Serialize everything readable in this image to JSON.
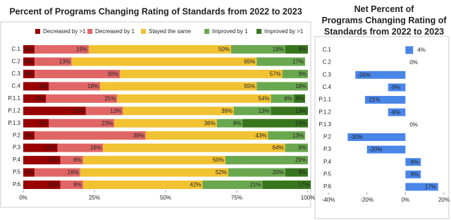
{
  "chart_data": [
    {
      "type": "stacked-bar-horizontal",
      "title": "Percent of Programs Changing Rating of Standards from 2022 to 2023",
      "categories": [
        "C.1",
        "C.2",
        "C.3",
        "C.4",
        "P.1.1",
        "P.1.2",
        "P.1.3",
        "P.2",
        "P.3",
        "P.4",
        "P.5",
        "P.6"
      ],
      "series": [
        {
          "name": "Decreased by >1",
          "color": "#990000",
          "values": [
            4,
            4,
            4,
            9,
            8,
            22,
            9,
            4,
            12,
            13,
            4,
            13
          ],
          "value_labels": [
            "4%",
            "4%",
            "4%",
            "9%",
            "8%",
            "22%",
            "9%",
            "4%",
            "12%",
            "13%",
            "4%",
            "13%"
          ]
        },
        {
          "name": "Decreased by 1",
          "color": "#e06666",
          "values": [
            19,
            13,
            30,
            18,
            25,
            13,
            23,
            39,
            16,
            8,
            16,
            8
          ],
          "value_labels": [
            "19%",
            "13%",
            "30%",
            "18%",
            "25%",
            "13%",
            "23%",
            "39%",
            "16%",
            "8%",
            "16%",
            "8%"
          ]
        },
        {
          "name": "Stayed the same",
          "color": "#f1c232",
          "values": [
            50,
            65,
            57,
            55,
            54,
            39,
            36,
            43,
            64,
            50,
            52,
            42
          ],
          "value_labels": [
            "50%",
            "65%",
            "57%",
            "55%",
            "54%",
            "39%",
            "36%",
            "43%",
            "64%",
            "50%",
            "52%",
            "42%"
          ]
        },
        {
          "name": "Improved by 1",
          "color": "#6aa84f",
          "values": [
            19,
            17,
            9,
            18,
            8,
            13,
            9,
            13,
            8,
            29,
            20,
            21
          ],
          "value_labels": [
            "19%",
            "17%",
            "9%",
            "18%",
            "8%",
            "13%",
            "9%",
            "13%",
            "8%",
            "29%",
            "20%",
            "21%"
          ]
        },
        {
          "name": "Improved by >1",
          "color": "#38761d",
          "values": [
            8,
            null,
            null,
            null,
            4,
            13,
            23,
            null,
            null,
            null,
            8,
            17
          ],
          "value_labels": [
            "8%",
            null,
            null,
            null,
            "4%",
            "13%",
            "23%",
            null,
            null,
            null,
            "8%",
            "17%"
          ]
        }
      ],
      "xlim": [
        0,
        100
      ],
      "xticks": [
        {
          "value": 0,
          "label": "0%"
        },
        {
          "value": 25,
          "label": "25%"
        },
        {
          "value": 50,
          "label": "50%"
        },
        {
          "value": 75,
          "label": "75%"
        },
        {
          "value": 100,
          "label": "100%"
        }
      ]
    },
    {
      "type": "bar-horizontal",
      "title": "Net Percent of Programs Changing Rating of Standards from 2022 to 2023",
      "categories": [
        "C.1",
        "C.2",
        "C.3",
        "C.4",
        "P.1.1",
        "P.1.2",
        "P.1.3",
        "P.2",
        "P.3",
        "P.4",
        "P.5",
        "P.6"
      ],
      "values": [
        4,
        0,
        -26,
        -9,
        -21,
        -9,
        0,
        -30,
        -20,
        8,
        8,
        17
      ],
      "value_labels": [
        "4%",
        "0%",
        "-26%",
        "-9%",
        "-21%",
        "-9%",
        "0%",
        "-30%",
        "-20%",
        "8%",
        "8%",
        "17%"
      ],
      "color": "#4a86e8",
      "xlim": [
        -40,
        20
      ],
      "xticks": [
        {
          "value": -40,
          "label": "-40%"
        },
        {
          "value": -20,
          "label": "-20%"
        },
        {
          "value": 0,
          "label": "0%"
        },
        {
          "value": 20,
          "label": "20%"
        }
      ]
    }
  ]
}
